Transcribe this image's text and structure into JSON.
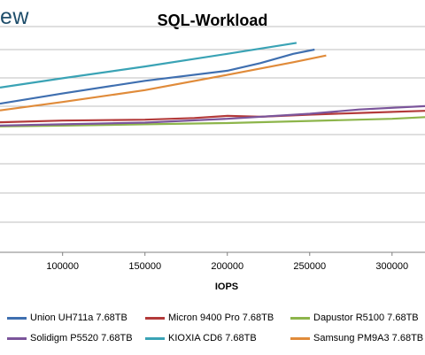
{
  "header": {
    "brand_fragment": "ew"
  },
  "chart_data": {
    "type": "line",
    "title": "SQL-Workload",
    "xlabel": "IOPS",
    "ylabel": "",
    "xlim": [
      62000,
      320000
    ],
    "ylim": [
      0,
      2400
    ],
    "xticks": [
      100000,
      150000,
      200000,
      250000,
      300000
    ],
    "xtick_labels": [
      "100000",
      "150000",
      "200000",
      "250000",
      "300000"
    ],
    "grid": true,
    "legend_position": "bottom",
    "series": [
      {
        "name": "Union UH711a 7.68TB",
        "color": "#3f6fb0",
        "x": [
          62000,
          100000,
          150000,
          200000,
          220000,
          240000,
          253000
        ],
        "y": [
          1760,
          1880,
          2030,
          2150,
          2240,
          2350,
          2400
        ]
      },
      {
        "name": "Micron 9400 Pro 7.68TB",
        "color": "#b33a3a",
        "x": [
          62000,
          100000,
          150000,
          180000,
          200000,
          220000,
          250000,
          280000,
          320000
        ],
        "y": [
          1540,
          1560,
          1570,
          1590,
          1615,
          1605,
          1630,
          1650,
          1675
        ]
      },
      {
        "name": "Dapustor R5100 7.68TB",
        "color": "#8db54b",
        "x": [
          62000,
          100000,
          150000,
          200000,
          250000,
          300000,
          320000
        ],
        "y": [
          1490,
          1500,
          1515,
          1530,
          1555,
          1580,
          1600
        ]
      },
      {
        "name": "Solidigm P5520 7.68TB",
        "color": "#7b559b",
        "x": [
          62000,
          100000,
          150000,
          200000,
          250000,
          280000,
          320000
        ],
        "y": [
          1500,
          1515,
          1535,
          1580,
          1640,
          1690,
          1730
        ]
      },
      {
        "name": "KIOXIA CD6 7.68TB",
        "color": "#3aa3b5",
        "x": [
          62000,
          100000,
          150000,
          200000,
          242000
        ],
        "y": [
          1950,
          2060,
          2200,
          2350,
          2480
        ]
      },
      {
        "name": "Samsung PM9A3 7.68TB",
        "color": "#e08b3a",
        "x": [
          62000,
          100000,
          150000,
          200000,
          240000,
          260000
        ],
        "y": [
          1680,
          1780,
          1920,
          2100,
          2250,
          2330
        ]
      }
    ]
  }
}
